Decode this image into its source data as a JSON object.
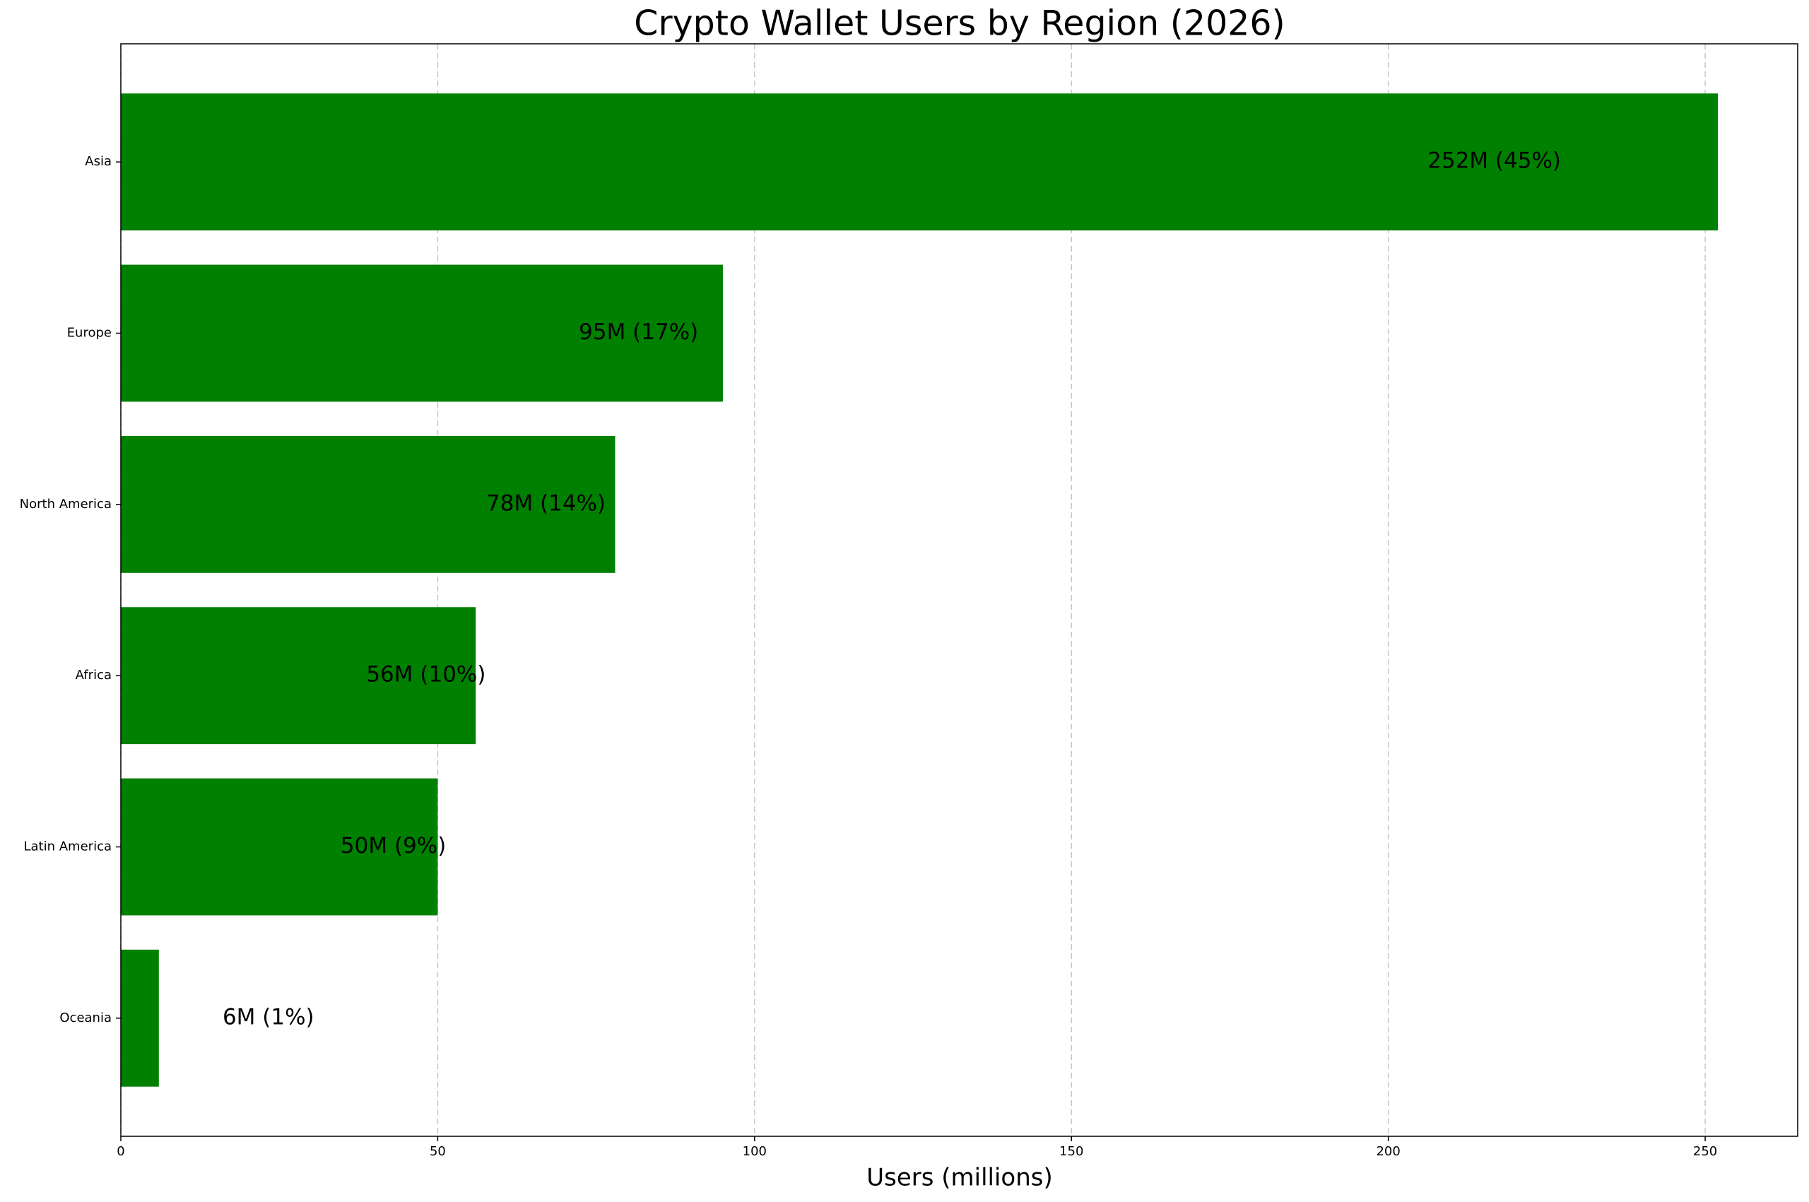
{
  "chart_data": {
    "type": "barh",
    "title": "Crypto Wallet Users by Region (2026)",
    "x_label": "Users (millions)",
    "categories": [
      "Asia",
      "Europe",
      "North America",
      "Africa",
      "Latin America",
      "Oceania"
    ],
    "values": [
      252,
      95,
      78,
      56,
      50,
      6
    ],
    "value_labels": [
      "252M (45%)",
      "95M (17%)",
      "78M (14%)",
      "56M (10%)",
      "50M (9%)",
      "6M (1%)"
    ],
    "color": "#008000",
    "xlim": [
      0,
      264.6
    ],
    "xticks": [
      0,
      50,
      100,
      150,
      200,
      250
    ],
    "grid": true
  }
}
